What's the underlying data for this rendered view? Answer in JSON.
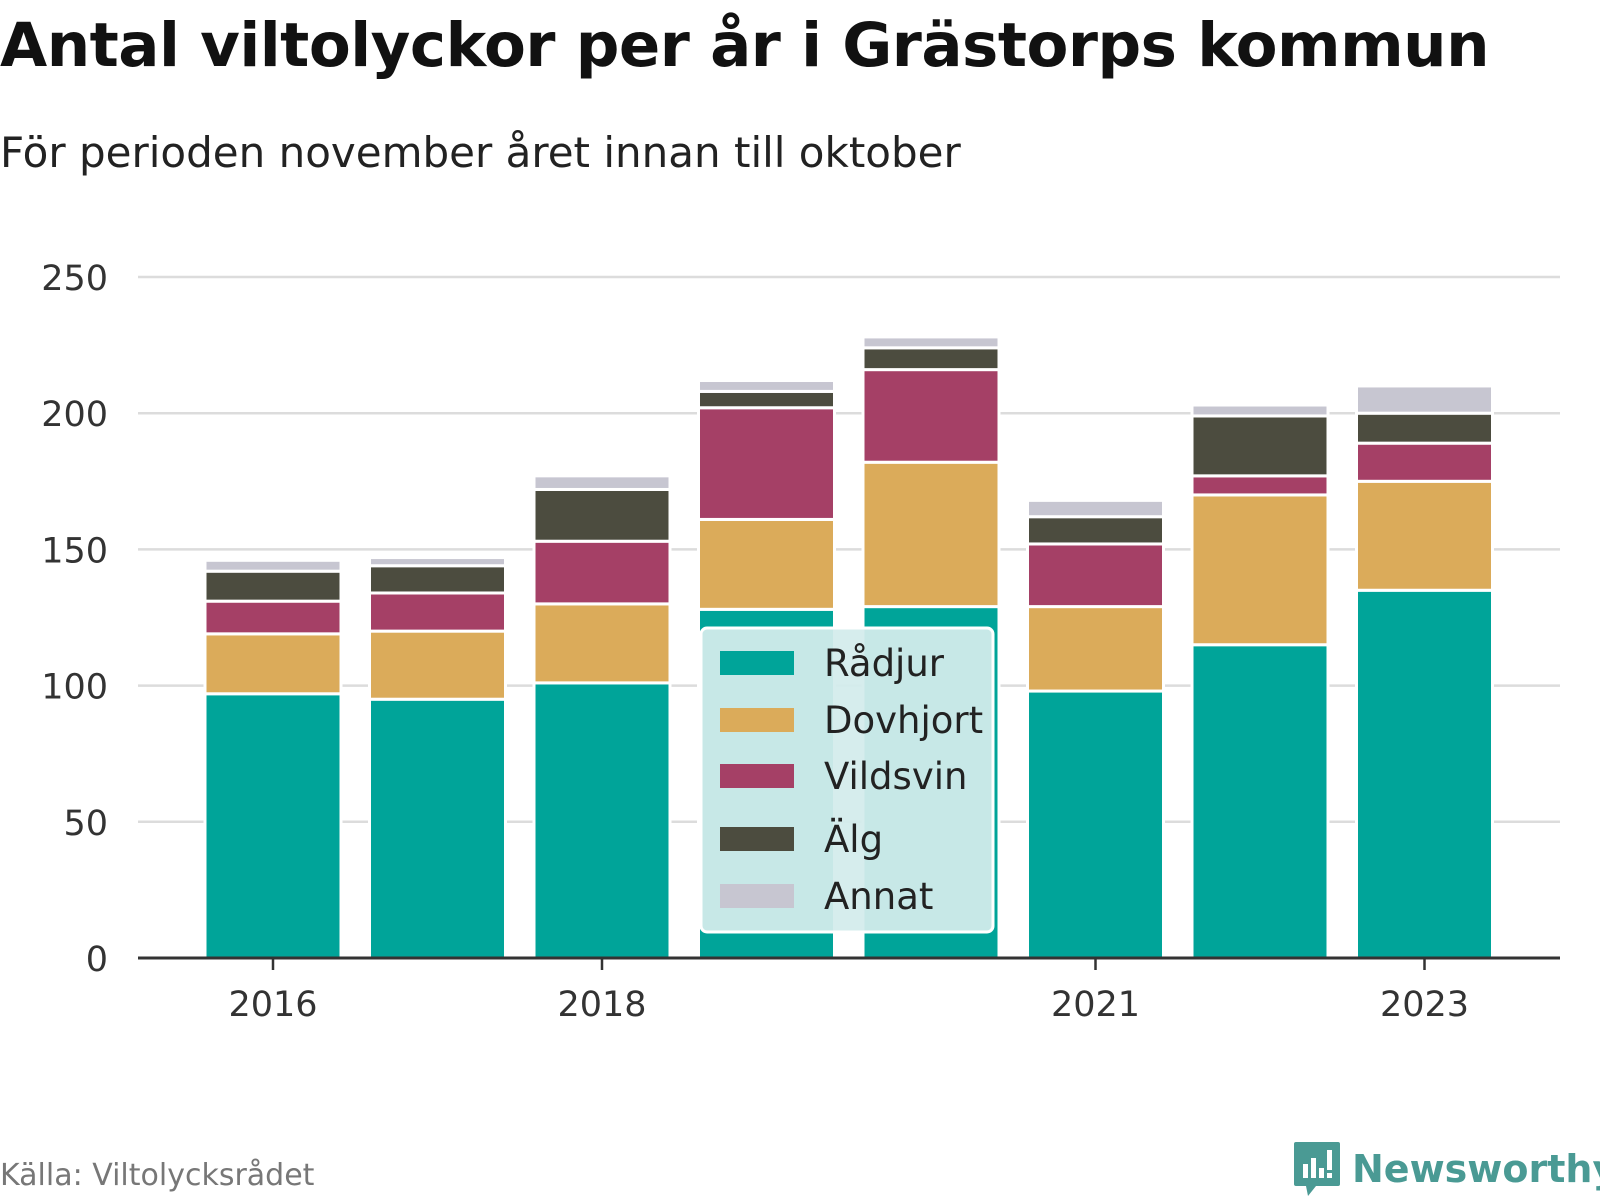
{
  "title": "Antal viltolyckor per år i Grästorps kommun",
  "subtitle": "För perioden november året innan till oktober",
  "source": "Källa: Viltolycksrådet",
  "brand": "Newsworthy",
  "brand_color": "#4a9a94",
  "chart_data": {
    "type": "bar",
    "stacked": true,
    "categories": [
      "2016",
      "2017",
      "2018",
      "2019",
      "2020",
      "2021",
      "2022",
      "2023"
    ],
    "x_tick_labels": [
      "2016",
      "",
      "2018",
      "",
      "",
      "2021",
      "",
      "2023"
    ],
    "ylim": [
      0,
      250
    ],
    "yticks": [
      0,
      50,
      100,
      150,
      200,
      250
    ],
    "grid": true,
    "legend_position": "center",
    "series": [
      {
        "name": "Rådjur",
        "color": "#00a499",
        "values": [
          97,
          95,
          101,
          128,
          129,
          98,
          115,
          135
        ]
      },
      {
        "name": "Dovhjort",
        "color": "#dbab5a",
        "values": [
          22,
          25,
          29,
          33,
          53,
          31,
          55,
          40
        ]
      },
      {
        "name": "Vildsvin",
        "color": "#a54066",
        "values": [
          12,
          14,
          23,
          41,
          34,
          23,
          7,
          14
        ]
      },
      {
        "name": "Älg",
        "color": "#4c4c3f",
        "values": [
          11,
          10,
          19,
          6,
          8,
          10,
          22,
          11
        ]
      },
      {
        "name": "Annat",
        "color": "#c7c6d1",
        "values": [
          4,
          3,
          5,
          4,
          4,
          6,
          4,
          10
        ]
      }
    ]
  }
}
